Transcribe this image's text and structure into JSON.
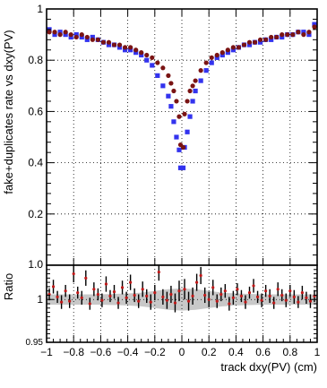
{
  "chart_data": [
    {
      "type": "scatter",
      "ylabel": "fake+duplicates rate vs dxy(PV)",
      "xlim": [
        -1,
        1
      ],
      "ylim": [
        0,
        1
      ],
      "x_ticks": [
        -1,
        -0.8,
        -0.6,
        -0.4,
        -0.2,
        0,
        0.2,
        0.4,
        0.6,
        0.8,
        1
      ],
      "y_ticks": [
        0.2,
        0.4,
        0.6,
        0.8,
        1
      ],
      "y_tick_labels": [
        "0.2",
        "0.4",
        "0.6",
        "0.8",
        "1"
      ],
      "grid": true,
      "series": [
        {
          "marker": "square",
          "color": "#3333ee",
          "points": [
            [
              -0.98,
              0.92
            ],
            [
              -0.94,
              0.9
            ],
            [
              -0.9,
              0.91
            ],
            [
              -0.86,
              0.9
            ],
            [
              -0.82,
              0.89
            ],
            [
              -0.78,
              0.9
            ],
            [
              -0.74,
              0.89
            ],
            [
              -0.7,
              0.88
            ],
            [
              -0.66,
              0.89
            ],
            [
              -0.62,
              0.88
            ],
            [
              -0.58,
              0.87
            ],
            [
              -0.54,
              0.86
            ],
            [
              -0.5,
              0.86
            ],
            [
              -0.46,
              0.85
            ],
            [
              -0.42,
              0.84
            ],
            [
              -0.38,
              0.84
            ],
            [
              -0.34,
              0.83
            ],
            [
              -0.3,
              0.82
            ],
            [
              -0.26,
              0.8
            ],
            [
              -0.22,
              0.78
            ],
            [
              -0.18,
              0.74
            ],
            [
              -0.14,
              0.7
            ],
            [
              -0.1,
              0.66
            ],
            [
              -0.08,
              0.62
            ],
            [
              -0.06,
              0.56
            ],
            [
              -0.04,
              0.5
            ],
            [
              -0.02,
              0.45
            ],
            [
              -0.01,
              0.38
            ],
            [
              0.01,
              0.38
            ],
            [
              0.02,
              0.46
            ],
            [
              0.04,
              0.52
            ],
            [
              0.06,
              0.58
            ],
            [
              0.08,
              0.64
            ],
            [
              0.1,
              0.68
            ],
            [
              0.14,
              0.72
            ],
            [
              0.18,
              0.76
            ],
            [
              0.22,
              0.79
            ],
            [
              0.26,
              0.81
            ],
            [
              0.3,
              0.82
            ],
            [
              0.34,
              0.83
            ],
            [
              0.38,
              0.84
            ],
            [
              0.42,
              0.85
            ],
            [
              0.46,
              0.86
            ],
            [
              0.5,
              0.86
            ],
            [
              0.54,
              0.87
            ],
            [
              0.58,
              0.87
            ],
            [
              0.62,
              0.88
            ],
            [
              0.66,
              0.88
            ],
            [
              0.7,
              0.89
            ],
            [
              0.74,
              0.89
            ],
            [
              0.78,
              0.9
            ],
            [
              0.82,
              0.9
            ],
            [
              0.86,
              0.91
            ],
            [
              0.9,
              0.91
            ],
            [
              0.94,
              0.9
            ],
            [
              0.98,
              0.94
            ]
          ]
        },
        {
          "marker": "circle",
          "color": "#7a1414",
          "points": [
            [
              -0.98,
              0.91
            ],
            [
              -0.94,
              0.91
            ],
            [
              -0.9,
              0.9
            ],
            [
              -0.86,
              0.91
            ],
            [
              -0.82,
              0.9
            ],
            [
              -0.78,
              0.89
            ],
            [
              -0.74,
              0.9
            ],
            [
              -0.7,
              0.89
            ],
            [
              -0.66,
              0.88
            ],
            [
              -0.62,
              0.88
            ],
            [
              -0.58,
              0.87
            ],
            [
              -0.54,
              0.87
            ],
            [
              -0.5,
              0.86
            ],
            [
              -0.46,
              0.86
            ],
            [
              -0.42,
              0.85
            ],
            [
              -0.38,
              0.85
            ],
            [
              -0.34,
              0.84
            ],
            [
              -0.3,
              0.83
            ],
            [
              -0.26,
              0.82
            ],
            [
              -0.22,
              0.81
            ],
            [
              -0.18,
              0.79
            ],
            [
              -0.14,
              0.77
            ],
            [
              -0.1,
              0.74
            ],
            [
              -0.08,
              0.71
            ],
            [
              -0.06,
              0.68
            ],
            [
              -0.04,
              0.64
            ],
            [
              -0.02,
              0.58
            ],
            [
              -0.01,
              0.47
            ],
            [
              0.01,
              0.46
            ],
            [
              0.02,
              0.59
            ],
            [
              0.04,
              0.64
            ],
            [
              0.06,
              0.68
            ],
            [
              0.08,
              0.7
            ],
            [
              0.1,
              0.72
            ],
            [
              0.14,
              0.76
            ],
            [
              0.18,
              0.79
            ],
            [
              0.22,
              0.81
            ],
            [
              0.26,
              0.82
            ],
            [
              0.3,
              0.83
            ],
            [
              0.34,
              0.84
            ],
            [
              0.38,
              0.85
            ],
            [
              0.42,
              0.85
            ],
            [
              0.46,
              0.86
            ],
            [
              0.5,
              0.87
            ],
            [
              0.54,
              0.87
            ],
            [
              0.58,
              0.88
            ],
            [
              0.62,
              0.88
            ],
            [
              0.66,
              0.89
            ],
            [
              0.7,
              0.89
            ],
            [
              0.74,
              0.9
            ],
            [
              0.78,
              0.9
            ],
            [
              0.82,
              0.9
            ],
            [
              0.86,
              0.91
            ],
            [
              0.9,
              0.9
            ],
            [
              0.94,
              0.91
            ],
            [
              0.98,
              0.93
            ]
          ]
        }
      ]
    },
    {
      "type": "scatter",
      "xlabel": "track dxy(PV) (cm)",
      "ylabel": "Ratio",
      "xlim": [
        -1,
        1
      ],
      "ylim": [
        0.95,
        1.04
      ],
      "x_ticks": [
        -1,
        -0.8,
        -0.6,
        -0.4,
        -0.2,
        0,
        0.2,
        0.4,
        0.6,
        0.8,
        1
      ],
      "x_tick_labels": [
        "−1",
        "−0.8",
        "−0.6",
        "−0.4",
        "−0.2",
        "0",
        "0.2",
        "0.4",
        "0.6",
        "0.8",
        "1"
      ],
      "y_ticks": [
        0.95,
        1.0,
        1.04
      ],
      "y_tick_labels": [
        "0.95",
        "1",
        "1.0"
      ],
      "grid": true,
      "band": {
        "color": "#c8c8c8",
        "x": [
          -1,
          -0.8,
          -0.6,
          -0.4,
          -0.3,
          -0.2,
          -0.1,
          0,
          0.1,
          0.2,
          0.3,
          0.4,
          0.6,
          0.8,
          1
        ],
        "half_width": [
          0.006,
          0.006,
          0.006,
          0.007,
          0.008,
          0.01,
          0.012,
          0.013,
          0.012,
          0.01,
          0.008,
          0.007,
          0.006,
          0.006,
          0.006
        ]
      },
      "series": [
        {
          "marker": "circle",
          "color": "#c01818",
          "points": [
            [
              -0.98,
              1.006,
              0.007
            ],
            [
              -0.95,
              1.015,
              0.008
            ],
            [
              -0.92,
              1.003,
              0.007
            ],
            [
              -0.89,
              0.997,
              0.008
            ],
            [
              -0.86,
              1.01,
              0.007
            ],
            [
              -0.83,
              0.998,
              0.008
            ],
            [
              -0.8,
              1.03,
              0.01
            ],
            [
              -0.77,
              1.008,
              0.007
            ],
            [
              -0.74,
              1.002,
              0.008
            ],
            [
              -0.71,
              1.025,
              0.009
            ],
            [
              -0.68,
              0.995,
              0.007
            ],
            [
              -0.65,
              1.012,
              0.008
            ],
            [
              -0.62,
              1.006,
              0.007
            ],
            [
              -0.59,
              0.999,
              0.008
            ],
            [
              -0.56,
              1.018,
              0.009
            ],
            [
              -0.53,
              1.004,
              0.007
            ],
            [
              -0.5,
              1.009,
              0.008
            ],
            [
              -0.47,
              0.996,
              0.007
            ],
            [
              -0.44,
              1.014,
              0.008
            ],
            [
              -0.41,
              1.002,
              0.007
            ],
            [
              -0.38,
              1.02,
              0.009
            ],
            [
              -0.35,
              1.005,
              0.008
            ],
            [
              -0.32,
              0.998,
              0.008
            ],
            [
              -0.29,
              1.012,
              0.009
            ],
            [
              -0.26,
              1.004,
              0.008
            ],
            [
              -0.23,
              0.997,
              0.009
            ],
            [
              -0.2,
              1.008,
              0.009
            ],
            [
              -0.17,
              1.032,
              0.01
            ],
            [
              -0.14,
              1.003,
              0.009
            ],
            [
              -0.11,
              0.999,
              0.01
            ],
            [
              -0.08,
              1.006,
              0.01
            ],
            [
              -0.05,
              0.996,
              0.011
            ],
            [
              -0.02,
              1.01,
              0.012
            ],
            [
              0.02,
              1.012,
              0.012
            ],
            [
              0.05,
              0.998,
              0.011
            ],
            [
              0.08,
              1.004,
              0.01
            ],
            [
              0.11,
              1.02,
              0.01
            ],
            [
              0.14,
              1.028,
              0.01
            ],
            [
              0.17,
              1.005,
              0.009
            ],
            [
              0.2,
              1.0,
              0.009
            ],
            [
              0.23,
              1.014,
              0.009
            ],
            [
              0.26,
              0.998,
              0.008
            ],
            [
              0.29,
              1.006,
              0.008
            ],
            [
              0.32,
              1.01,
              0.008
            ],
            [
              0.35,
              0.995,
              0.008
            ],
            [
              0.38,
              1.002,
              0.008
            ],
            [
              0.41,
              1.012,
              0.007
            ],
            [
              0.44,
              1.004,
              0.007
            ],
            [
              0.47,
              0.997,
              0.008
            ],
            [
              0.5,
              1.008,
              0.007
            ],
            [
              0.53,
              1.016,
              0.008
            ],
            [
              0.56,
              1.003,
              0.007
            ],
            [
              0.59,
              0.999,
              0.008
            ],
            [
              0.62,
              1.01,
              0.007
            ],
            [
              0.65,
              1.004,
              0.008
            ],
            [
              0.68,
              0.996,
              0.007
            ],
            [
              0.71,
              1.012,
              0.008
            ],
            [
              0.74,
              1.005,
              0.007
            ],
            [
              0.77,
              0.999,
              0.008
            ],
            [
              0.8,
              1.01,
              0.007
            ],
            [
              0.83,
              1.003,
              0.008
            ],
            [
              0.86,
              0.997,
              0.007
            ],
            [
              0.89,
              1.008,
              0.008
            ],
            [
              0.92,
              1.002,
              0.007
            ],
            [
              0.95,
              0.998,
              0.008
            ],
            [
              0.98,
              1.004,
              0.007
            ]
          ]
        }
      ]
    }
  ]
}
